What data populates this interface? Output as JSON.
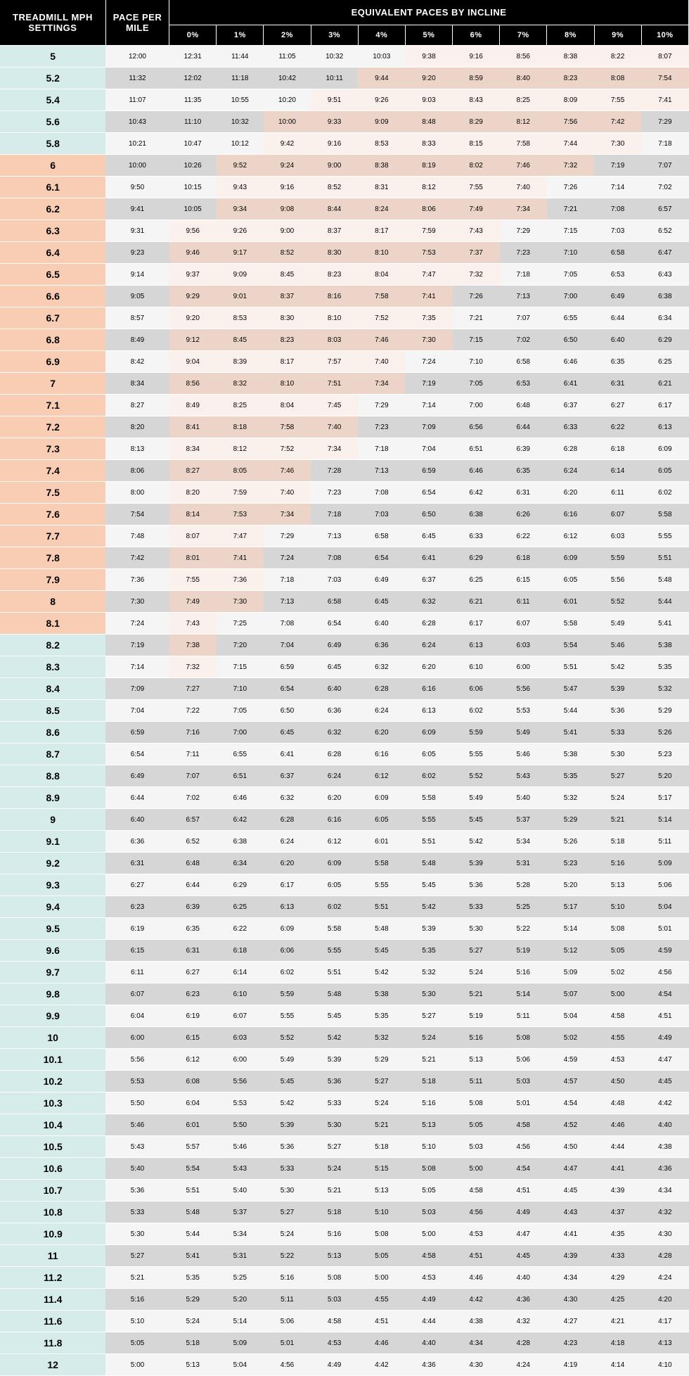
{
  "headers": {
    "mph": "TREADMILL MPH SETTINGS",
    "pace": "PACE PER MILE",
    "equiv": "EQUIVALENT PACES BY INCLINE",
    "inclines": [
      "0%",
      "1%",
      "2%",
      "3%",
      "4%",
      "5%",
      "6%",
      "7%",
      "8%",
      "9%",
      "10%"
    ]
  },
  "colors": {
    "teal_mph": "#d6ecea",
    "orange_mph": "#f9cdb3",
    "light_row": "#f5f5f5",
    "gray_row": "#d6d6d6",
    "light_orange_cell": "#faf1ed",
    "dark_orange_cell": "#ecd4c9",
    "header_bg": "#000000",
    "header_fg": "#ffffff"
  },
  "orange_range_start": 6,
  "orange_range_end": 8.1,
  "rows": [
    {
      "mph": "5",
      "pace": "12:00",
      "vals": [
        "12:31",
        "11:44",
        "11:05",
        "10:32",
        "10:03",
        "9:38",
        "9:16",
        "8:56",
        "8:38",
        "8:22",
        "8:07"
      ]
    },
    {
      "mph": "5.2",
      "pace": "11:32",
      "vals": [
        "12:02",
        "11:18",
        "10:42",
        "10:11",
        "9:44",
        "9:20",
        "8:59",
        "8:40",
        "8:23",
        "8:08",
        "7:54"
      ]
    },
    {
      "mph": "5.4",
      "pace": "11:07",
      "vals": [
        "11:35",
        "10:55",
        "10:20",
        "9:51",
        "9:26",
        "9:03",
        "8:43",
        "8:25",
        "8:09",
        "7:55",
        "7:41"
      ]
    },
    {
      "mph": "5.6",
      "pace": "10:43",
      "vals": [
        "11:10",
        "10:32",
        "10:00",
        "9:33",
        "9:09",
        "8:48",
        "8:29",
        "8:12",
        "7:56",
        "7:42",
        "7:29"
      ]
    },
    {
      "mph": "5.8",
      "pace": "10:21",
      "vals": [
        "10:47",
        "10:12",
        "9:42",
        "9:16",
        "8:53",
        "8:33",
        "8:15",
        "7:58",
        "7:44",
        "7:30",
        "7:18"
      ]
    },
    {
      "mph": "6",
      "pace": "10:00",
      "vals": [
        "10:26",
        "9:52",
        "9:24",
        "9:00",
        "8:38",
        "8:19",
        "8:02",
        "7:46",
        "7:32",
        "7:19",
        "7:07"
      ]
    },
    {
      "mph": "6.1",
      "pace": "9:50",
      "vals": [
        "10:15",
        "9:43",
        "9:16",
        "8:52",
        "8:31",
        "8:12",
        "7:55",
        "7:40",
        "7:26",
        "7:14",
        "7:02"
      ]
    },
    {
      "mph": "6.2",
      "pace": "9:41",
      "vals": [
        "10:05",
        "9:34",
        "9:08",
        "8:44",
        "8:24",
        "8:06",
        "7:49",
        "7:34",
        "7:21",
        "7:08",
        "6:57"
      ]
    },
    {
      "mph": "6.3",
      "pace": "9:31",
      "vals": [
        "9:56",
        "9:26",
        "9:00",
        "8:37",
        "8:17",
        "7:59",
        "7:43",
        "7:29",
        "7:15",
        "7:03",
        "6:52"
      ]
    },
    {
      "mph": "6.4",
      "pace": "9:23",
      "vals": [
        "9:46",
        "9:17",
        "8:52",
        "8:30",
        "8:10",
        "7:53",
        "7:37",
        "7:23",
        "7:10",
        "6:58",
        "6:47"
      ]
    },
    {
      "mph": "6.5",
      "pace": "9:14",
      "vals": [
        "9:37",
        "9:09",
        "8:45",
        "8:23",
        "8:04",
        "7:47",
        "7:32",
        "7:18",
        "7:05",
        "6:53",
        "6:43"
      ]
    },
    {
      "mph": "6.6",
      "pace": "9:05",
      "vals": [
        "9:29",
        "9:01",
        "8:37",
        "8:16",
        "7:58",
        "7:41",
        "7:26",
        "7:13",
        "7:00",
        "6:49",
        "6:38"
      ]
    },
    {
      "mph": "6.7",
      "pace": "8:57",
      "vals": [
        "9:20",
        "8:53",
        "8:30",
        "8:10",
        "7:52",
        "7:35",
        "7:21",
        "7:07",
        "6:55",
        "6:44",
        "6:34"
      ]
    },
    {
      "mph": "6.8",
      "pace": "8:49",
      "vals": [
        "9:12",
        "8:45",
        "8:23",
        "8:03",
        "7:46",
        "7:30",
        "7:15",
        "7:02",
        "6:50",
        "6:40",
        "6:29"
      ]
    },
    {
      "mph": "6.9",
      "pace": "8:42",
      "vals": [
        "9:04",
        "8:39",
        "8:17",
        "7:57",
        "7:40",
        "7:24",
        "7:10",
        "6:58",
        "6:46",
        "6:35",
        "6:25"
      ]
    },
    {
      "mph": "7",
      "pace": "8:34",
      "vals": [
        "8:56",
        "8:32",
        "8:10",
        "7:51",
        "7:34",
        "7:19",
        "7:05",
        "6:53",
        "6:41",
        "6:31",
        "6:21"
      ]
    },
    {
      "mph": "7.1",
      "pace": "8:27",
      "vals": [
        "8:49",
        "8:25",
        "8:04",
        "7:45",
        "7:29",
        "7:14",
        "7:00",
        "6:48",
        "6:37",
        "6:27",
        "6:17"
      ]
    },
    {
      "mph": "7.2",
      "pace": "8:20",
      "vals": [
        "8:41",
        "8:18",
        "7:58",
        "7:40",
        "7:23",
        "7:09",
        "6:56",
        "6:44",
        "6:33",
        "6:22",
        "6:13"
      ]
    },
    {
      "mph": "7.3",
      "pace": "8:13",
      "vals": [
        "8:34",
        "8:12",
        "7:52",
        "7:34",
        "7:18",
        "7:04",
        "6:51",
        "6:39",
        "6:28",
        "6:18",
        "6:09"
      ]
    },
    {
      "mph": "7.4",
      "pace": "8:06",
      "vals": [
        "8:27",
        "8:05",
        "7:46",
        "7:28",
        "7:13",
        "6:59",
        "6:46",
        "6:35",
        "6:24",
        "6:14",
        "6:05"
      ]
    },
    {
      "mph": "7.5",
      "pace": "8:00",
      "vals": [
        "8:20",
        "7:59",
        "7:40",
        "7:23",
        "7:08",
        "6:54",
        "6:42",
        "6:31",
        "6:20",
        "6:11",
        "6:02"
      ]
    },
    {
      "mph": "7.6",
      "pace": "7:54",
      "vals": [
        "8:14",
        "7:53",
        "7:34",
        "7:18",
        "7:03",
        "6:50",
        "6:38",
        "6:26",
        "6:16",
        "6:07",
        "5:58"
      ]
    },
    {
      "mph": "7.7",
      "pace": "7:48",
      "vals": [
        "8:07",
        "7:47",
        "7:29",
        "7:13",
        "6:58",
        "6:45",
        "6:33",
        "6:22",
        "6:12",
        "6:03",
        "5:55"
      ]
    },
    {
      "mph": "7.8",
      "pace": "7:42",
      "vals": [
        "8:01",
        "7:41",
        "7:24",
        "7:08",
        "6:54",
        "6:41",
        "6:29",
        "6:18",
        "6:09",
        "5:59",
        "5:51"
      ]
    },
    {
      "mph": "7.9",
      "pace": "7:36",
      "vals": [
        "7:55",
        "7:36",
        "7:18",
        "7:03",
        "6:49",
        "6:37",
        "6:25",
        "6:15",
        "6:05",
        "5:56",
        "5:48"
      ]
    },
    {
      "mph": "8",
      "pace": "7:30",
      "vals": [
        "7:49",
        "7:30",
        "7:13",
        "6:58",
        "6:45",
        "6:32",
        "6:21",
        "6:11",
        "6:01",
        "5:52",
        "5:44"
      ]
    },
    {
      "mph": "8.1",
      "pace": "7:24",
      "vals": [
        "7:43",
        "7:25",
        "7:08",
        "6:54",
        "6:40",
        "6:28",
        "6:17",
        "6:07",
        "5:58",
        "5:49",
        "5:41"
      ]
    },
    {
      "mph": "8.2",
      "pace": "7:19",
      "vals": [
        "7:38",
        "7:20",
        "7:04",
        "6:49",
        "6:36",
        "6:24",
        "6:13",
        "6:03",
        "5:54",
        "5:46",
        "5:38"
      ]
    },
    {
      "mph": "8.3",
      "pace": "7:14",
      "vals": [
        "7:32",
        "7:15",
        "6:59",
        "6:45",
        "6:32",
        "6:20",
        "6:10",
        "6:00",
        "5:51",
        "5:42",
        "5:35"
      ]
    },
    {
      "mph": "8.4",
      "pace": "7:09",
      "vals": [
        "7:27",
        "7:10",
        "6:54",
        "6:40",
        "6:28",
        "6:16",
        "6:06",
        "5:56",
        "5:47",
        "5:39",
        "5:32"
      ]
    },
    {
      "mph": "8.5",
      "pace": "7:04",
      "vals": [
        "7:22",
        "7:05",
        "6:50",
        "6:36",
        "6:24",
        "6:13",
        "6:02",
        "5:53",
        "5:44",
        "5:36",
        "5:29"
      ]
    },
    {
      "mph": "8.6",
      "pace": "6:59",
      "vals": [
        "7:16",
        "7:00",
        "6:45",
        "6:32",
        "6:20",
        "6:09",
        "5:59",
        "5:49",
        "5:41",
        "5:33",
        "5:26"
      ]
    },
    {
      "mph": "8.7",
      "pace": "6:54",
      "vals": [
        "7:11",
        "6:55",
        "6:41",
        "6:28",
        "6:16",
        "6:05",
        "5:55",
        "5:46",
        "5:38",
        "5:30",
        "5:23"
      ]
    },
    {
      "mph": "8.8",
      "pace": "6:49",
      "vals": [
        "7:07",
        "6:51",
        "6:37",
        "6:24",
        "6:12",
        "6:02",
        "5:52",
        "5:43",
        "5:35",
        "5:27",
        "5:20"
      ]
    },
    {
      "mph": "8.9",
      "pace": "6:44",
      "vals": [
        "7:02",
        "6:46",
        "6:32",
        "6:20",
        "6:09",
        "5:58",
        "5:49",
        "5:40",
        "5:32",
        "5:24",
        "5:17"
      ]
    },
    {
      "mph": "9",
      "pace": "6:40",
      "vals": [
        "6:57",
        "6:42",
        "6:28",
        "6:16",
        "6:05",
        "5:55",
        "5:45",
        "5:37",
        "5:29",
        "5:21",
        "5:14"
      ]
    },
    {
      "mph": "9.1",
      "pace": "6:36",
      "vals": [
        "6:52",
        "6:38",
        "6:24",
        "6:12",
        "6:01",
        "5:51",
        "5:42",
        "5:34",
        "5:26",
        "5:18",
        "5:11"
      ]
    },
    {
      "mph": "9.2",
      "pace": "6:31",
      "vals": [
        "6:48",
        "6:34",
        "6:20",
        "6:09",
        "5:58",
        "5:48",
        "5:39",
        "5:31",
        "5:23",
        "5:16",
        "5:09"
      ]
    },
    {
      "mph": "9.3",
      "pace": "6:27",
      "vals": [
        "6:44",
        "6:29",
        "6:17",
        "6:05",
        "5:55",
        "5:45",
        "5:36",
        "5:28",
        "5:20",
        "5:13",
        "5:06"
      ]
    },
    {
      "mph": "9.4",
      "pace": "6:23",
      "vals": [
        "6:39",
        "6:25",
        "6:13",
        "6:02",
        "5:51",
        "5:42",
        "5:33",
        "5:25",
        "5:17",
        "5:10",
        "5:04"
      ]
    },
    {
      "mph": "9.5",
      "pace": "6:19",
      "vals": [
        "6:35",
        "6:22",
        "6:09",
        "5:58",
        "5:48",
        "5:39",
        "5:30",
        "5:22",
        "5:14",
        "5:08",
        "5:01"
      ]
    },
    {
      "mph": "9.6",
      "pace": "6:15",
      "vals": [
        "6:31",
        "6:18",
        "6:06",
        "5:55",
        "5:45",
        "5:35",
        "5:27",
        "5:19",
        "5:12",
        "5:05",
        "4:59"
      ]
    },
    {
      "mph": "9.7",
      "pace": "6:11",
      "vals": [
        "6:27",
        "6:14",
        "6:02",
        "5:51",
        "5:42",
        "5:32",
        "5:24",
        "5:16",
        "5:09",
        "5:02",
        "4:56"
      ]
    },
    {
      "mph": "9.8",
      "pace": "6:07",
      "vals": [
        "6:23",
        "6:10",
        "5:59",
        "5:48",
        "5:38",
        "5:30",
        "5:21",
        "5:14",
        "5:07",
        "5:00",
        "4:54"
      ]
    },
    {
      "mph": "9.9",
      "pace": "6:04",
      "vals": [
        "6:19",
        "6:07",
        "5:55",
        "5:45",
        "5:35",
        "5:27",
        "5:19",
        "5:11",
        "5:04",
        "4:58",
        "4:51"
      ]
    },
    {
      "mph": "10",
      "pace": "6:00",
      "vals": [
        "6:15",
        "6:03",
        "5:52",
        "5:42",
        "5:32",
        "5:24",
        "5:16",
        "5:08",
        "5:02",
        "4:55",
        "4:49"
      ]
    },
    {
      "mph": "10.1",
      "pace": "5:56",
      "vals": [
        "6:12",
        "6:00",
        "5:49",
        "5:39",
        "5:29",
        "5:21",
        "5:13",
        "5:06",
        "4:59",
        "4:53",
        "4:47"
      ]
    },
    {
      "mph": "10.2",
      "pace": "5:53",
      "vals": [
        "6:08",
        "5:56",
        "5:45",
        "5:36",
        "5:27",
        "5:18",
        "5:11",
        "5:03",
        "4:57",
        "4:50",
        "4:45"
      ]
    },
    {
      "mph": "10.3",
      "pace": "5:50",
      "vals": [
        "6:04",
        "5:53",
        "5:42",
        "5:33",
        "5:24",
        "5:16",
        "5:08",
        "5:01",
        "4:54",
        "4:48",
        "4:42"
      ]
    },
    {
      "mph": "10.4",
      "pace": "5:46",
      "vals": [
        "6:01",
        "5:50",
        "5:39",
        "5:30",
        "5:21",
        "5:13",
        "5:05",
        "4:58",
        "4:52",
        "4:46",
        "4:40"
      ]
    },
    {
      "mph": "10.5",
      "pace": "5:43",
      "vals": [
        "5:57",
        "5:46",
        "5:36",
        "5:27",
        "5:18",
        "5:10",
        "5:03",
        "4:56",
        "4:50",
        "4:44",
        "4:38"
      ]
    },
    {
      "mph": "10.6",
      "pace": "5:40",
      "vals": [
        "5:54",
        "5:43",
        "5:33",
        "5:24",
        "5:15",
        "5:08",
        "5:00",
        "4:54",
        "4:47",
        "4:41",
        "4:36"
      ]
    },
    {
      "mph": "10.7",
      "pace": "5:36",
      "vals": [
        "5:51",
        "5:40",
        "5:30",
        "5:21",
        "5:13",
        "5:05",
        "4:58",
        "4:51",
        "4:45",
        "4:39",
        "4:34"
      ]
    },
    {
      "mph": "10.8",
      "pace": "5:33",
      "vals": [
        "5:48",
        "5:37",
        "5:27",
        "5:18",
        "5:10",
        "5:03",
        "4:56",
        "4:49",
        "4:43",
        "4:37",
        "4:32"
      ]
    },
    {
      "mph": "10.9",
      "pace": "5:30",
      "vals": [
        "5:44",
        "5:34",
        "5:24",
        "5:16",
        "5:08",
        "5:00",
        "4:53",
        "4:47",
        "4:41",
        "4:35",
        "4:30"
      ]
    },
    {
      "mph": "11",
      "pace": "5:27",
      "vals": [
        "5:41",
        "5:31",
        "5:22",
        "5:13",
        "5:05",
        "4:58",
        "4:51",
        "4:45",
        "4:39",
        "4:33",
        "4:28"
      ]
    },
    {
      "mph": "11.2",
      "pace": "5:21",
      "vals": [
        "5:35",
        "5:25",
        "5:16",
        "5:08",
        "5:00",
        "4:53",
        "4:46",
        "4:40",
        "4:34",
        "4:29",
        "4:24"
      ]
    },
    {
      "mph": "11.4",
      "pace": "5:16",
      "vals": [
        "5:29",
        "5:20",
        "5:11",
        "5:03",
        "4:55",
        "4:49",
        "4:42",
        "4:36",
        "4:30",
        "4:25",
        "4:20"
      ]
    },
    {
      "mph": "11.6",
      "pace": "5:10",
      "vals": [
        "5:24",
        "5:14",
        "5:06",
        "4:58",
        "4:51",
        "4:44",
        "4:38",
        "4:32",
        "4:27",
        "4:21",
        "4:17"
      ]
    },
    {
      "mph": "11.8",
      "pace": "5:05",
      "vals": [
        "5:18",
        "5:09",
        "5:01",
        "4:53",
        "4:46",
        "4:40",
        "4:34",
        "4:28",
        "4:23",
        "4:18",
        "4:13"
      ]
    },
    {
      "mph": "12",
      "pace": "5:00",
      "vals": [
        "5:13",
        "5:04",
        "4:56",
        "4:49",
        "4:42",
        "4:36",
        "4:30",
        "4:24",
        "4:19",
        "4:14",
        "4:10"
      ]
    }
  ]
}
